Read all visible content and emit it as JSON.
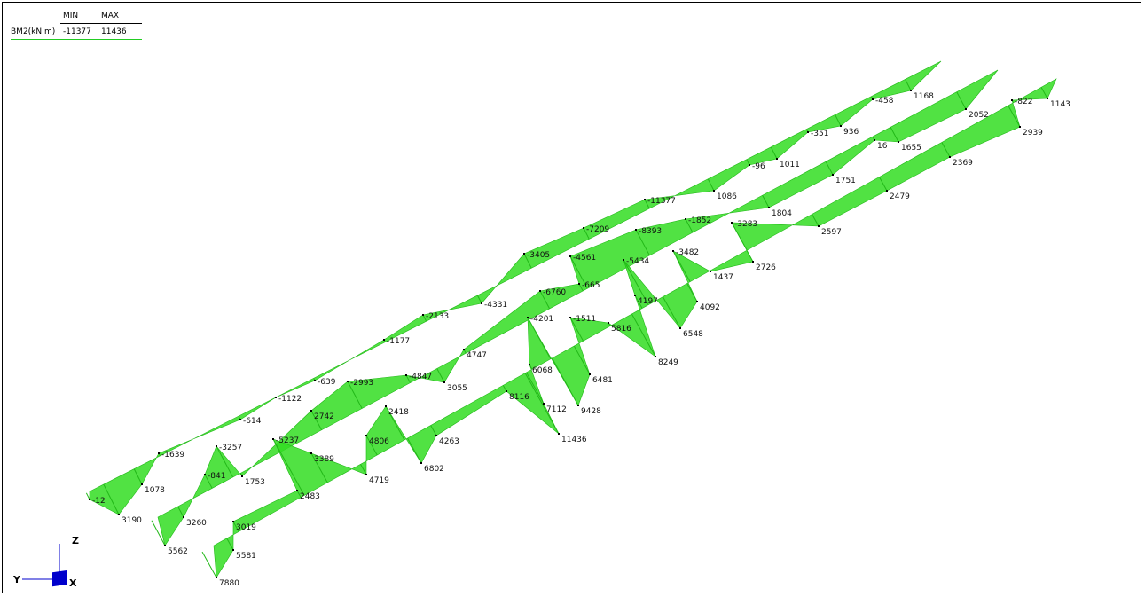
{
  "legend": {
    "col_min": "MIN",
    "col_max": "MAX",
    "quantity": "BM2(kN.m)",
    "min_value": "-11377",
    "max_value": "11436"
  },
  "colors": {
    "diagram_fill": "#33dd22",
    "diagram_edge": "#22b818",
    "axis_box": "#0000cc"
  },
  "axes": {
    "z_label": "Z",
    "y_label": "Y",
    "x_label": "X"
  },
  "beams": [
    {
      "name": "beam-row-1",
      "stations": [
        {
          "value": "-12",
          "neg": true
        },
        {
          "value": "3190",
          "neg": false
        },
        {
          "value": "1078",
          "neg": false
        },
        {
          "value": "-1639",
          "neg": true
        },
        {
          "value": "-614",
          "neg": true
        },
        {
          "value": "-1122",
          "neg": true
        },
        {
          "value": "-639",
          "neg": true
        },
        {
          "value": "-1177",
          "neg": true
        },
        {
          "value": "-2133",
          "neg": true
        },
        {
          "value": "-4331",
          "neg": true
        },
        {
          "value": "-3405",
          "neg": true
        },
        {
          "value": "-7209",
          "neg": true
        },
        {
          "value": "-11377",
          "neg": true
        },
        {
          "value": "1086",
          "neg": false
        },
        {
          "value": "-96",
          "neg": true
        },
        {
          "value": "1011",
          "neg": false
        },
        {
          "value": "-351",
          "neg": true
        },
        {
          "value": "936",
          "neg": false
        },
        {
          "value": "-458",
          "neg": true
        },
        {
          "value": "1168",
          "neg": false
        }
      ]
    },
    {
      "name": "beam-row-2",
      "stations": [
        {
          "value": "3260",
          "neg": false
        },
        {
          "value": "5562",
          "neg": false
        },
        {
          "value": "-841",
          "neg": true
        },
        {
          "value": "-3257",
          "neg": true
        },
        {
          "value": "1753",
          "neg": false
        },
        {
          "value": "2742",
          "neg": false
        },
        {
          "value": "-2993",
          "neg": true
        },
        {
          "value": "-4847",
          "neg": true
        },
        {
          "value": "3055",
          "neg": false
        },
        {
          "value": "4747",
          "neg": false
        },
        {
          "value": "-6760",
          "neg": true
        },
        {
          "value": "-4561",
          "neg": true
        },
        {
          "value": "-665",
          "neg": true
        },
        {
          "value": "-8393",
          "neg": true
        },
        {
          "value": "-1852",
          "neg": true
        },
        {
          "value": "1804",
          "neg": false
        },
        {
          "value": "1751",
          "neg": false
        },
        {
          "value": "16",
          "neg": false
        },
        {
          "value": "1655",
          "neg": false
        },
        {
          "value": "2052",
          "neg": false
        }
      ]
    },
    {
      "name": "beam-row-3",
      "stations": [
        {
          "value": "5581",
          "neg": false
        },
        {
          "value": "3019",
          "neg": false
        },
        {
          "value": "7880",
          "neg": false
        },
        {
          "value": "-5237",
          "neg": true
        },
        {
          "value": "3389",
          "neg": false
        },
        {
          "value": "2483",
          "neg": false
        },
        {
          "value": "4806",
          "neg": false
        },
        {
          "value": "2418",
          "neg": false
        },
        {
          "value": "4719",
          "neg": false
        },
        {
          "value": "4263",
          "neg": false
        },
        {
          "value": "6802",
          "neg": false
        },
        {
          "value": "-4201",
          "neg": true
        },
        {
          "value": "6068",
          "neg": false
        },
        {
          "value": "8116",
          "neg": false
        },
        {
          "value": "-1511",
          "neg": true
        },
        {
          "value": "7112",
          "neg": false
        },
        {
          "value": "6481",
          "neg": false
        },
        {
          "value": "9428",
          "neg": false
        },
        {
          "value": "11436",
          "neg": false
        },
        {
          "value": "5816",
          "neg": false
        },
        {
          "value": "-5434",
          "neg": true
        },
        {
          "value": "4197",
          "neg": false
        },
        {
          "value": "-3482",
          "neg": true
        },
        {
          "value": "4092",
          "neg": false
        },
        {
          "value": "6548",
          "neg": false
        },
        {
          "value": "8249",
          "neg": false
        },
        {
          "value": "1437",
          "neg": false
        },
        {
          "value": "-3283",
          "neg": true
        },
        {
          "value": "2726",
          "neg": false
        },
        {
          "value": "2597",
          "neg": false
        },
        {
          "value": "2479",
          "neg": false
        },
        {
          "value": "2369",
          "neg": false
        },
        {
          "value": "-822",
          "neg": true
        },
        {
          "value": "1143",
          "neg": false
        },
        {
          "value": "2939",
          "neg": false
        }
      ]
    }
  ]
}
